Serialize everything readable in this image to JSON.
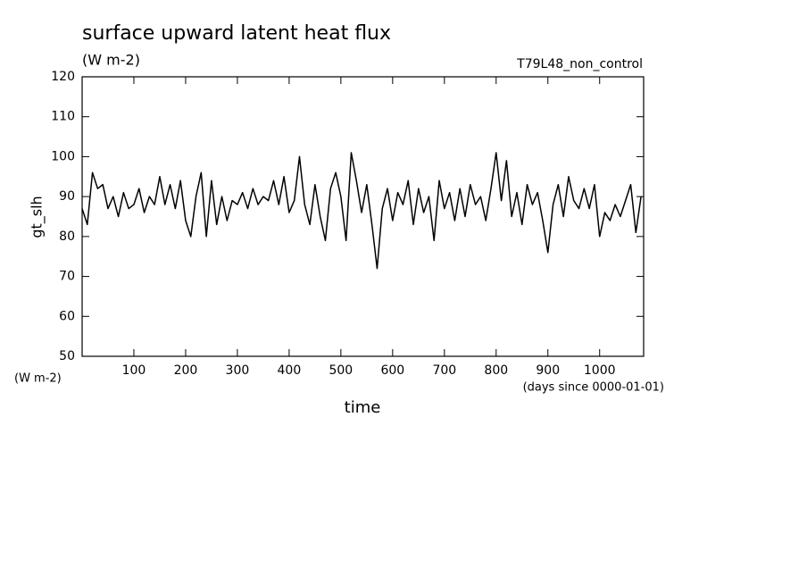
{
  "chart_data": {
    "type": "line",
    "title": "surface upward latent heat flux",
    "subtitle": "(W m-2)",
    "run_label": "T79L48_non_control",
    "y_label": "gt_slh",
    "y_unit_label": "(W m-2)",
    "x_label": "time",
    "x_unit_label": "(days since 0000-01-01)",
    "xlim": [
      0,
      1085
    ],
    "ylim": [
      50,
      120
    ],
    "xticks": [
      100,
      200,
      300,
      400,
      500,
      600,
      700,
      800,
      900,
      1000
    ],
    "yticks": [
      50,
      60,
      70,
      80,
      90,
      100,
      110,
      120
    ],
    "x": [
      0,
      10,
      20,
      30,
      40,
      50,
      60,
      70,
      80,
      90,
      100,
      110,
      120,
      130,
      140,
      150,
      160,
      170,
      180,
      190,
      200,
      210,
      220,
      230,
      240,
      250,
      260,
      270,
      280,
      290,
      300,
      310,
      320,
      330,
      340,
      350,
      360,
      370,
      380,
      390,
      400,
      410,
      420,
      430,
      440,
      450,
      460,
      470,
      480,
      490,
      500,
      510,
      520,
      530,
      540,
      550,
      560,
      570,
      580,
      590,
      600,
      610,
      620,
      630,
      640,
      650,
      660,
      670,
      680,
      690,
      700,
      710,
      720,
      730,
      740,
      750,
      760,
      770,
      780,
      790,
      800,
      810,
      820,
      830,
      840,
      850,
      860,
      870,
      880,
      890,
      900,
      910,
      920,
      930,
      940,
      950,
      960,
      970,
      980,
      990,
      1000,
      1010,
      1020,
      1030,
      1040,
      1050,
      1060,
      1070,
      1080
    ],
    "series": [
      {
        "color": "#000000",
        "values": [
          87,
          83,
          96,
          92,
          93,
          87,
          90,
          85,
          91,
          87,
          88,
          92,
          86,
          90,
          88,
          95,
          88,
          93,
          87,
          94,
          84,
          80,
          90,
          96,
          80,
          94,
          83,
          90,
          84,
          89,
          88,
          91,
          87,
          92,
          88,
          90,
          89,
          94,
          88,
          95,
          86,
          89,
          100,
          88,
          83,
          93,
          85,
          79,
          92,
          96,
          90,
          79,
          101,
          94,
          86,
          93,
          83,
          72,
          87,
          92,
          84,
          91,
          88,
          94,
          83,
          92,
          86,
          90,
          79,
          94,
          87,
          91,
          84,
          92,
          85,
          93,
          88,
          90,
          84,
          92,
          101,
          89,
          99,
          85,
          91,
          83,
          93,
          88,
          91,
          84,
          76,
          88,
          93,
          85,
          95,
          89,
          87,
          92,
          87,
          93,
          80,
          86,
          84,
          88,
          85,
          89,
          93,
          81,
          90
        ]
      }
    ]
  }
}
